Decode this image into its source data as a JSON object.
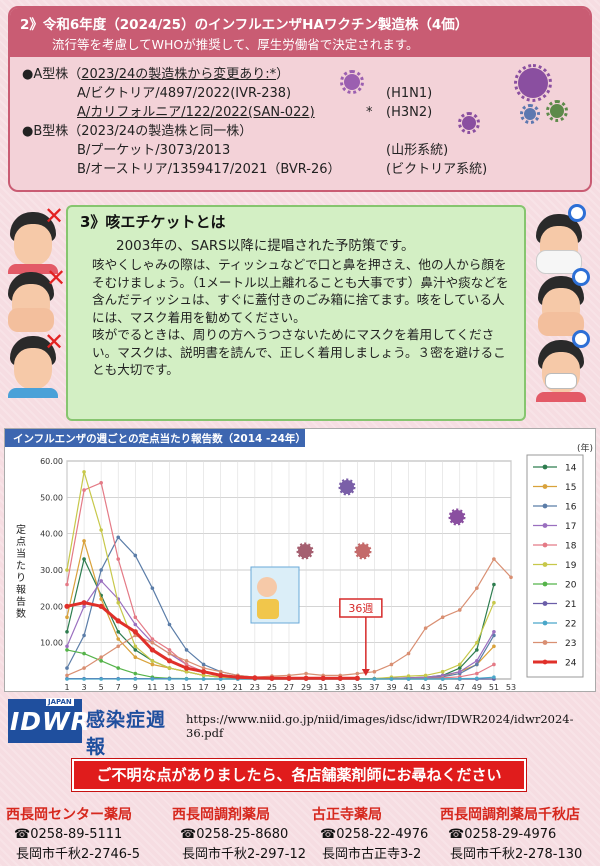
{
  "vaccine": {
    "title": "2》令和6年度（2024/25）のインフルエンザHAワクチン製造株（4価）",
    "subtitle": "流行等を考慮してWHOが推奨して、厚生労働省で決定されます。",
    "type_a": {
      "prefix": "●A型株（",
      "note": "2023/24の製造株から変更あり:*",
      "suffix": "）",
      "strains": [
        {
          "name": "A/ビクトリア/4897/2022(IVR-238)",
          "subtype": "(H1N1)",
          "underline": false,
          "mark": ""
        },
        {
          "name": "A/カリフォルニア/122/2022(SAN-022)",
          "subtype": "(H3N2)",
          "underline": true,
          "mark": "*"
        }
      ]
    },
    "type_b": {
      "label": "●B型株（2023/24の製造株と同一株）",
      "strains": [
        {
          "name": "B/プーケット/3073/2013",
          "subtype": "(山形系統)"
        },
        {
          "name": "B/オーストリア/1359417/2021（BVR-26）",
          "subtype": "(ビクトリア系統)"
        }
      ]
    }
  },
  "etiquette": {
    "title": "3》咳エチケットとは",
    "lead": "2003年の、SARS以降に提唱された予防策です。",
    "paragraphs": [
      "咳やくしゃみの際は、ティッシュなどで口と鼻を押さえ、他の人から顔をそむけましょう。（1メートル以上離れることも大事です）鼻汁や痰などを含んだティッシュは、すぐに蓋付きのごみ箱に捨てます。咳をしている人には、マスク着用を勧めてください。",
      "咳がでるときは、周りの方へうつさないためにマスクを着用してください。マスクは、説明書を読んで、正しく着用しましょう。３密を避けることも大切です。"
    ]
  },
  "chart_data": {
    "type": "line",
    "title": "インフルエンザの週ごとの定点当たり報告数（2014 -24年）",
    "ylabel": "定点当たり報告数",
    "legend_title": "(年)",
    "legend_position": "right",
    "ylim": [
      0,
      60
    ],
    "yticks": [
      "10.00",
      "20.00",
      "30.00",
      "40.00",
      "50.00",
      "60.00"
    ],
    "x": [
      1,
      3,
      5,
      7,
      9,
      11,
      13,
      15,
      17,
      19,
      21,
      23,
      25,
      27,
      29,
      31,
      33,
      35,
      37,
      39,
      41,
      43,
      45,
      47,
      49,
      51,
      53
    ],
    "callout": {
      "label": "36週",
      "x": 36
    },
    "series": [
      {
        "name": "14",
        "color": "#2e7d4f",
        "values": [
          13,
          33,
          23,
          13,
          8,
          5,
          3,
          2,
          1,
          0.5,
          0.2,
          0.1,
          0.1,
          0.1,
          0.1,
          0.1,
          0.1,
          0.1,
          0.1,
          0.2,
          0.3,
          0.5,
          1,
          3,
          8,
          26,
          null
        ]
      },
      {
        "name": "15",
        "color": "#d9a23b",
        "values": [
          17,
          38,
          22,
          11,
          6,
          4,
          3,
          2,
          1,
          0.5,
          0.2,
          0.1,
          0.1,
          0.1,
          0.1,
          0.1,
          0.1,
          0.1,
          0.1,
          0.1,
          0.2,
          0.4,
          0.8,
          2,
          4,
          9,
          null
        ]
      },
      {
        "name": "16",
        "color": "#5b7da8",
        "values": [
          3,
          12,
          30,
          39,
          34,
          25,
          15,
          8,
          4,
          2,
          1,
          0.5,
          0.2,
          0.1,
          0.1,
          0.1,
          0.1,
          0.1,
          0.1,
          0.1,
          0.2,
          0.3,
          0.6,
          1.5,
          4,
          12,
          null
        ]
      },
      {
        "name": "17",
        "color": "#9a6fbf",
        "values": [
          9,
          20,
          27,
          22,
          15,
          10,
          7,
          4,
          2,
          1,
          0.5,
          0.3,
          0.1,
          0.1,
          0.1,
          0.1,
          0.1,
          0.1,
          0.1,
          0.2,
          0.3,
          0.5,
          1,
          2,
          5,
          13,
          null
        ]
      },
      {
        "name": "18",
        "color": "#e47a86",
        "values": [
          26,
          52,
          54,
          33,
          17,
          11,
          8,
          4,
          2,
          1,
          0.4,
          0.2,
          0.1,
          0.1,
          0.1,
          0.1,
          0.1,
          0.1,
          0.1,
          0.1,
          0.1,
          0.2,
          0.3,
          0.6,
          1.5,
          4,
          null
        ]
      },
      {
        "name": "19",
        "color": "#c7c84a",
        "values": [
          30,
          57,
          41,
          21,
          9,
          5,
          3,
          2,
          1,
          0.5,
          0.2,
          0.1,
          0.1,
          0.1,
          0.1,
          0.1,
          0.1,
          0.1,
          0.1,
          0.5,
          0.8,
          1,
          2,
          4,
          10,
          21,
          null
        ]
      },
      {
        "name": "20",
        "color": "#55b34a",
        "values": [
          8,
          7,
          5,
          3,
          1.5,
          0.5,
          0.2,
          0.1,
          0,
          0,
          0,
          0,
          0,
          0,
          0,
          0,
          0,
          0,
          0,
          0,
          0,
          0,
          0,
          0,
          0,
          0,
          null
        ]
      },
      {
        "name": "21",
        "color": "#6a5da8",
        "values": [
          0.1,
          0.1,
          0.1,
          0.1,
          0.1,
          0.1,
          0.1,
          0,
          0,
          0,
          0,
          0,
          0,
          0,
          0,
          0,
          0,
          0,
          0,
          0,
          0,
          0,
          0,
          0,
          0,
          0,
          null
        ]
      },
      {
        "name": "22",
        "color": "#4aa7c9",
        "values": [
          0,
          0,
          0,
          0,
          0,
          0,
          0,
          0,
          0,
          0,
          0,
          0,
          0,
          0,
          0,
          0,
          0,
          0,
          0,
          0,
          0,
          0,
          0,
          0.1,
          0.2,
          0.5,
          null
        ]
      },
      {
        "name": "23",
        "color": "#d98f72",
        "values": [
          1,
          3,
          6,
          9,
          12,
          10,
          7,
          5,
          3,
          2,
          1,
          0.5,
          0.8,
          1,
          1.5,
          1,
          1,
          1.5,
          2,
          4,
          7,
          14,
          17,
          19,
          25,
          33,
          28
        ]
      },
      {
        "name": "24",
        "color": "#e0302a",
        "values": [
          20,
          21,
          20,
          16,
          13,
          8,
          5,
          3,
          2,
          1,
          0.5,
          0.3,
          0.2,
          0.2,
          0.2,
          0.2,
          0.2,
          0.2,
          null,
          null,
          null,
          null,
          null,
          null,
          null,
          null,
          null
        ]
      }
    ]
  },
  "source": {
    "logo_text": "IDWR",
    "logo_japan": "JAPAN",
    "logo_name": "感染症週報",
    "url": "https://www.niid.go.jp/niid/images/idsc/idwr/IDWR2024/idwr2024-36.pdf"
  },
  "notice": "ご不明な点がありましたら、各店舗薬剤師にお尋ねください",
  "pharmacies": [
    {
      "name": "西長岡センター薬局",
      "tel": "☎0258-89-5111",
      "address": "長岡市千秋2-2746-5"
    },
    {
      "name": "西長岡調剤薬局",
      "tel": "☎0258-25-8680",
      "address": "長岡市千秋2-297-12"
    },
    {
      "name": "古正寺薬局",
      "tel": "☎0258-22-4976",
      "address": "長岡市古正寺3-2"
    },
    {
      "name": "西長岡調剤薬局千秋店",
      "tel": "☎0258-29-4976",
      "address": "長岡市千秋2-278-130"
    }
  ],
  "colors": {
    "section2_accent": "#c95c73",
    "section3_bg": "#d3efc4",
    "notice_bg": "#e01c1c",
    "pharmacy_name": "#d6281e"
  }
}
